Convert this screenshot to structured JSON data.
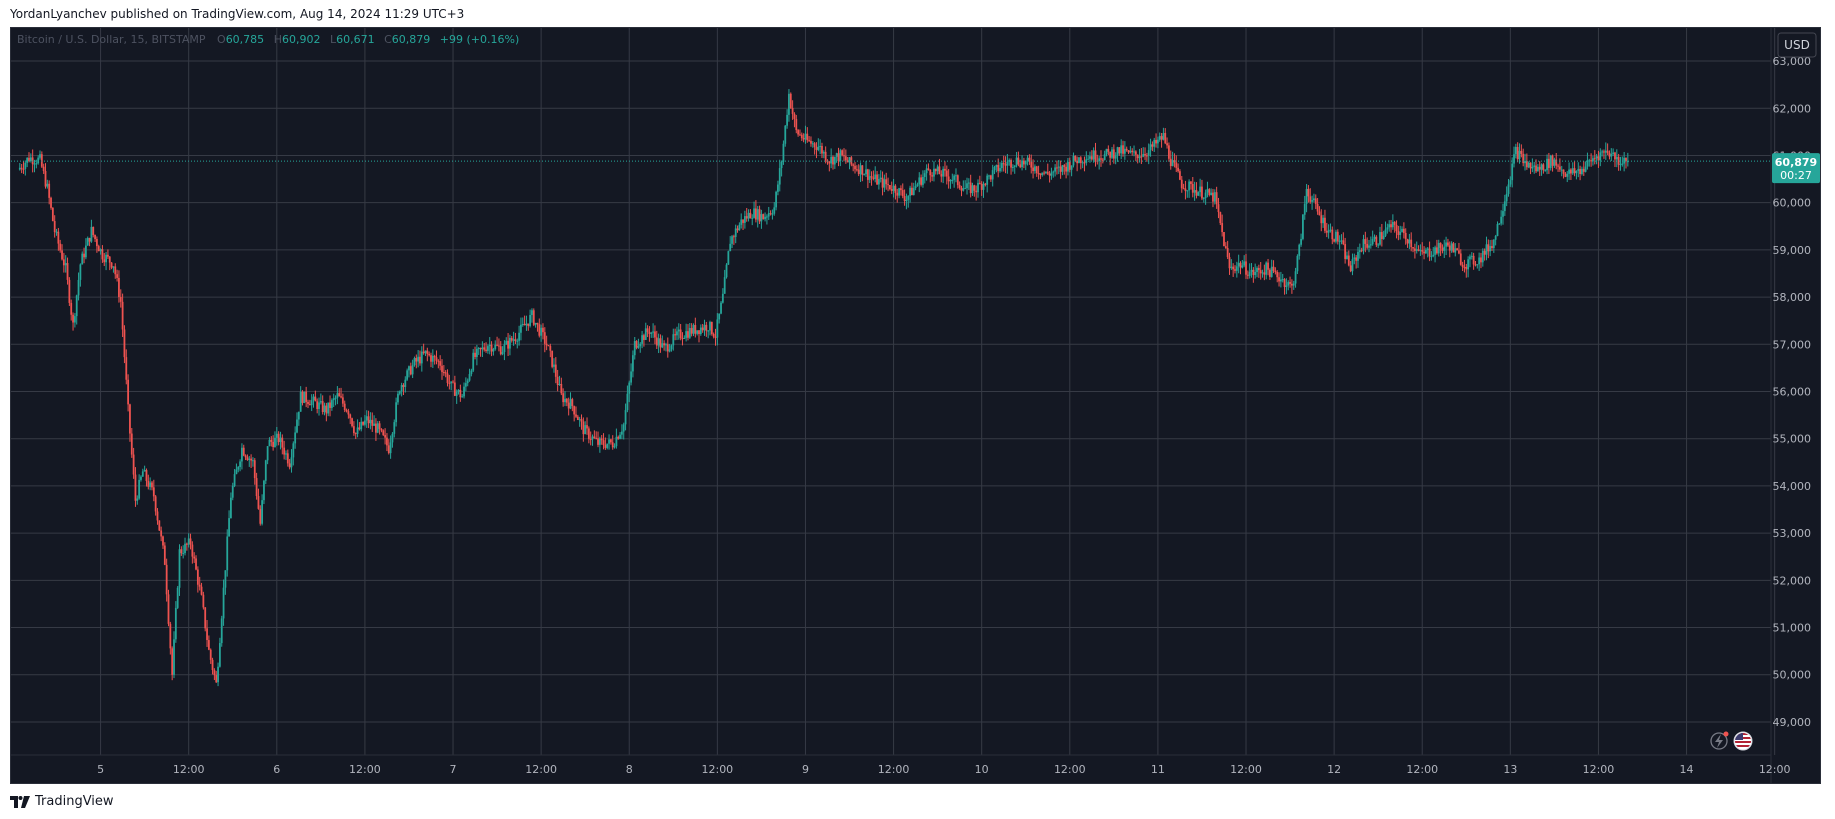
{
  "publish_line": "YordanLyanchev published on TradingView.com, Aug 14, 2024 11:29 UTC+3",
  "brand": "TradingView",
  "currency_button": "USD",
  "legend": {
    "symbol": "Bitcoin / U.S. Dollar, 15, BITSTAMP",
    "open_label": "O",
    "open": "60,785",
    "high_label": "H",
    "high": "60,902",
    "low_label": "L",
    "low": "60,671",
    "close_label": "C",
    "close": "60,879",
    "change": "+99 (+0.16%)"
  },
  "price_tag": {
    "price": "60,879",
    "countdown": "00:27"
  },
  "icons": [
    "lightning-icon",
    "us-flag-icon",
    "tradingview-logo-icon"
  ],
  "colors": {
    "background": "#141823",
    "grid": "#363a45",
    "up": "#26a69a",
    "down": "#ef5350",
    "tag": "#26a69a",
    "text": "#b2b5be"
  },
  "chart_data": {
    "type": "candlestick",
    "title": "Bitcoin / U.S. Dollar, 15, BITSTAMP",
    "ylabel": "USD",
    "ylim": [
      48300,
      63700
    ],
    "y_ticks": [
      "49,000",
      "50,000",
      "51,000",
      "52,000",
      "53,000",
      "54,000",
      "55,000",
      "56,000",
      "57,000",
      "58,000",
      "59,000",
      "60,000",
      "61,000",
      "62,000",
      "63,000"
    ],
    "y_tick_values": [
      49000,
      50000,
      51000,
      52000,
      53000,
      54000,
      55000,
      56000,
      57000,
      58000,
      59000,
      60000,
      61000,
      62000,
      63000
    ],
    "x_range_hours": [
      -1.2,
      238.5
    ],
    "x_ticks": [
      {
        "label": "5",
        "t": 11
      },
      {
        "label": "12:00",
        "t": 23
      },
      {
        "label": "6",
        "t": 35
      },
      {
        "label": "12:00",
        "t": 47
      },
      {
        "label": "7",
        "t": 59
      },
      {
        "label": "12:00",
        "t": 71
      },
      {
        "label": "8",
        "t": 83
      },
      {
        "label": "12:00",
        "t": 95
      },
      {
        "label": "9",
        "t": 107
      },
      {
        "label": "12:00",
        "t": 119
      },
      {
        "label": "10",
        "t": 131
      },
      {
        "label": "12:00",
        "t": 143
      },
      {
        "label": "11",
        "t": 155
      },
      {
        "label": "12:00",
        "t": 167
      },
      {
        "label": "12",
        "t": 179
      },
      {
        "label": "12:00",
        "t": 191
      },
      {
        "label": "13",
        "t": 203
      },
      {
        "label": "12:00",
        "t": 215
      },
      {
        "label": "14",
        "t": 227
      },
      {
        "label": "12:00",
        "t": 239
      }
    ],
    "last_price": 60879,
    "price_path": [
      [
        0,
        60700
      ],
      [
        1.5,
        60950
      ],
      [
        3,
        60900
      ],
      [
        4,
        60300
      ],
      [
        5,
        59400
      ],
      [
        6.5,
        58600
      ],
      [
        7.5,
        57400
      ],
      [
        8.5,
        58700
      ],
      [
        10,
        59400
      ],
      [
        11.5,
        58900
      ],
      [
        13,
        58700
      ],
      [
        14,
        57900
      ],
      [
        15,
        55600
      ],
      [
        16,
        53700
      ],
      [
        17,
        54300
      ],
      [
        18.5,
        53800
      ],
      [
        20,
        52400
      ],
      [
        21,
        50000
      ],
      [
        22,
        52600
      ],
      [
        23.5,
        52800
      ],
      [
        25,
        51600
      ],
      [
        26,
        50500
      ],
      [
        27,
        49800
      ],
      [
        28,
        51800
      ],
      [
        29,
        53800
      ],
      [
        30.5,
        54800
      ],
      [
        32,
        54500
      ],
      [
        33,
        53200
      ],
      [
        34,
        54900
      ],
      [
        35.5,
        55000
      ],
      [
        37,
        54500
      ],
      [
        38.5,
        55900
      ],
      [
        40,
        55800
      ],
      [
        42,
        55600
      ],
      [
        43.5,
        55900
      ],
      [
        45,
        55600
      ],
      [
        46,
        55100
      ],
      [
        47.5,
        55400
      ],
      [
        49,
        55200
      ],
      [
        50.5,
        54800
      ],
      [
        52,
        56100
      ],
      [
        54,
        56600
      ],
      [
        55.5,
        56800
      ],
      [
        57.5,
        56600
      ],
      [
        59,
        56100
      ],
      [
        60.5,
        55900
      ],
      [
        62,
        56700
      ],
      [
        64,
        57000
      ],
      [
        66,
        56900
      ],
      [
        68,
        57200
      ],
      [
        70,
        57600
      ],
      [
        72,
        57000
      ],
      [
        73,
        56500
      ],
      [
        74,
        55900
      ],
      [
        75.5,
        55700
      ],
      [
        77,
        55200
      ],
      [
        79,
        54900
      ],
      [
        81,
        54900
      ],
      [
        82.5,
        55300
      ],
      [
        84,
        57000
      ],
      [
        86,
        57300
      ],
      [
        88,
        56900
      ],
      [
        90,
        57200
      ],
      [
        92,
        57300
      ],
      [
        94,
        57400
      ],
      [
        95,
        57200
      ],
      [
        96,
        58000
      ],
      [
        97,
        59200
      ],
      [
        98.5,
        59600
      ],
      [
        100,
        59800
      ],
      [
        101.5,
        59700
      ],
      [
        103,
        59900
      ],
      [
        104,
        60900
      ],
      [
        105,
        62300
      ],
      [
        106,
        61500
      ],
      [
        107.5,
        61300
      ],
      [
        109,
        61200
      ],
      [
        110.5,
        60900
      ],
      [
        112,
        61000
      ],
      [
        113.5,
        60800
      ],
      [
        115,
        60700
      ],
      [
        116.5,
        60500
      ],
      [
        118,
        60400
      ],
      [
        119.5,
        60300
      ],
      [
        121,
        60100
      ],
      [
        122.5,
        60400
      ],
      [
        124,
        60700
      ],
      [
        126,
        60600
      ],
      [
        127.5,
        60500
      ],
      [
        129,
        60300
      ],
      [
        130.5,
        60300
      ],
      [
        132,
        60500
      ],
      [
        134,
        60800
      ],
      [
        136,
        60900
      ],
      [
        138,
        60800
      ],
      [
        140,
        60600
      ],
      [
        142,
        60700
      ],
      [
        144,
        60900
      ],
      [
        146,
        61000
      ],
      [
        148,
        61000
      ],
      [
        150,
        61100
      ],
      [
        152,
        61000
      ],
      [
        154,
        61100
      ],
      [
        156,
        61400
      ],
      [
        157,
        60900
      ],
      [
        158.5,
        60400
      ],
      [
        160,
        60300
      ],
      [
        161.5,
        60200
      ],
      [
        163,
        60100
      ],
      [
        165,
        58600
      ],
      [
        166.5,
        58700
      ],
      [
        168,
        58500
      ],
      [
        170,
        58600
      ],
      [
        172,
        58400
      ],
      [
        173.5,
        58200
      ],
      [
        174.5,
        59000
      ],
      [
        175.5,
        60300
      ],
      [
        177,
        59800
      ],
      [
        178.5,
        59400
      ],
      [
        180,
        59200
      ],
      [
        181.5,
        58600
      ],
      [
        183,
        59100
      ],
      [
        185,
        59200
      ],
      [
        187,
        59500
      ],
      [
        189,
        59300
      ],
      [
        191,
        58900
      ],
      [
        193,
        59000
      ],
      [
        195,
        59100
      ],
      [
        197,
        58700
      ],
      [
        199,
        58800
      ],
      [
        201,
        59200
      ],
      [
        202.5,
        60100
      ],
      [
        204,
        61100
      ],
      [
        205.5,
        60800
      ],
      [
        207,
        60700
      ],
      [
        209,
        60900
      ],
      [
        211,
        60600
      ],
      [
        213,
        60700
      ],
      [
        215,
        61000
      ],
      [
        216.5,
        61100
      ],
      [
        218,
        60900
      ],
      [
        219,
        60879
      ]
    ]
  }
}
